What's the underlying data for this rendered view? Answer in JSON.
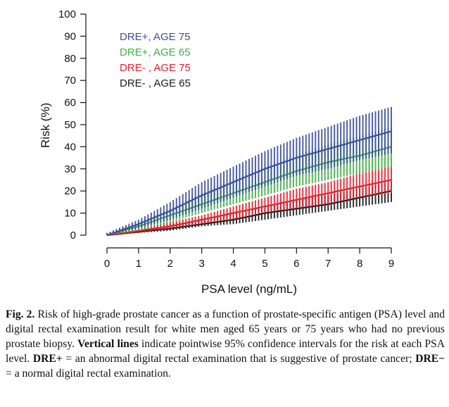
{
  "chart_data": {
    "type": "line",
    "xlabel": "PSA level (ng/mL)",
    "ylabel": "Risk (%)",
    "xlim": [
      0,
      9
    ],
    "ylim": [
      0,
      100
    ],
    "xticks": [
      "0",
      "1",
      "2",
      "3",
      "4",
      "5",
      "6",
      "7",
      "8",
      "9"
    ],
    "yticks": [
      "0",
      "10",
      "20",
      "30",
      "40",
      "50",
      "60",
      "70",
      "80",
      "90",
      "100"
    ],
    "grid": false,
    "legend_position": "top-left",
    "x": [
      0,
      1,
      2,
      3,
      4,
      5,
      6,
      7,
      8,
      9
    ],
    "series": [
      {
        "name": "DRE+, AGE 75",
        "color": "#3a4fa0",
        "values": [
          0,
          5,
          11,
          18,
          24,
          30,
          35,
          39,
          43,
          47
        ],
        "lower": [
          0,
          3,
          7,
          12,
          17,
          22,
          27,
          30,
          34,
          37
        ],
        "upper": [
          1,
          7,
          15,
          24,
          31,
          38,
          44,
          49,
          54,
          58
        ]
      },
      {
        "name": "DRE+, AGE 65",
        "color": "#3cb043",
        "values": [
          0,
          4,
          9,
          14,
          19,
          24,
          29,
          33,
          36,
          40
        ],
        "lower": [
          0,
          2,
          6,
          10,
          14,
          18,
          22,
          25,
          28,
          31
        ],
        "upper": [
          1,
          6,
          12,
          19,
          25,
          31,
          36,
          41,
          45,
          49
        ]
      },
      {
        "name": "DRE- , AGE 75",
        "color": "#e8202a",
        "values": [
          0,
          2,
          4,
          7,
          10,
          13,
          16,
          19,
          22,
          25
        ],
        "lower": [
          0,
          1,
          3,
          5,
          7,
          10,
          12,
          14,
          17,
          19
        ],
        "upper": [
          1,
          3,
          6,
          9,
          13,
          17,
          21,
          24,
          28,
          31
        ]
      },
      {
        "name": "DRE- , AGE 65",
        "color": "#1a1a1a",
        "values": [
          0,
          1.5,
          3,
          5,
          7,
          10,
          12,
          14,
          17,
          20
        ],
        "lower": [
          0,
          1,
          2,
          4,
          5,
          7,
          9,
          11,
          13,
          15
        ],
        "upper": [
          1,
          2.5,
          5,
          7,
          10,
          13,
          16,
          18,
          21,
          24
        ]
      }
    ]
  },
  "caption": {
    "fig_label": "Fig. 2.",
    "text1": " Risk of high-grade prostate cancer as a function of prostate-specific antigen (PSA) level and digital rectal examination result for white men aged 65 years or 75 years who had no previous prostate biopsy. ",
    "bold1": "Vertical lines",
    "text2": " indicate pointwise 95% confidence intervals for the risk at each PSA level. ",
    "bold2": "DRE+",
    "text3": " = an abnormal digital rectal examination that is suggestive of prostate cancer; ",
    "bold3": "DRE−",
    "text4": " = a normal digital rectal examination."
  }
}
